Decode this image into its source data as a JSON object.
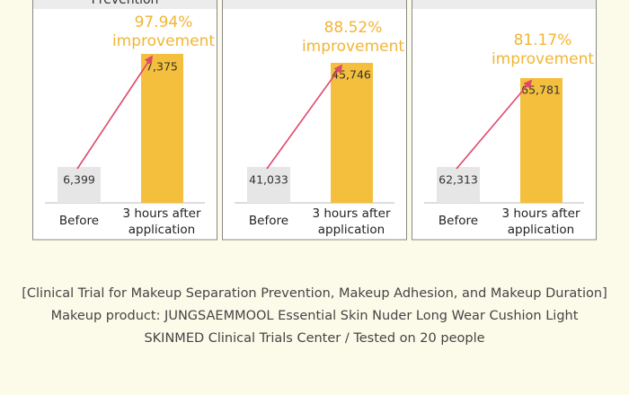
{
  "panels": [
    {
      "title": "Prevention",
      "improvement": "97.94%",
      "improvement_word": "improvement",
      "before_label": "Before",
      "after_label_1": "3 hours after",
      "after_label_2": "application",
      "before_value": "6,399",
      "after_value": "7,375"
    },
    {
      "improvement": "88.52%",
      "improvement_word": "improvement",
      "before_label": "Before",
      "after_label_1": "3 hours after",
      "after_label_2": "application",
      "before_value": "41,033",
      "after_value": "45,746"
    },
    {
      "improvement": "81.17%",
      "improvement_word": "improvement",
      "before_label": "Before",
      "after_label_1": "3 hours after",
      "after_label_2": "application",
      "before_value": "62,313",
      "after_value": "65,781"
    }
  ],
  "footer": {
    "line1": "[Clinical Trial for Makeup Separation Prevention, Makeup Adhesion, and Makeup Duration]",
    "line2": "Makeup product: JUNGSAEMMOOL Essential Skin Nuder Long Wear Cushion Light",
    "line3": "SKINMED Clinical Trials Center / Tested on 20 people"
  }
}
